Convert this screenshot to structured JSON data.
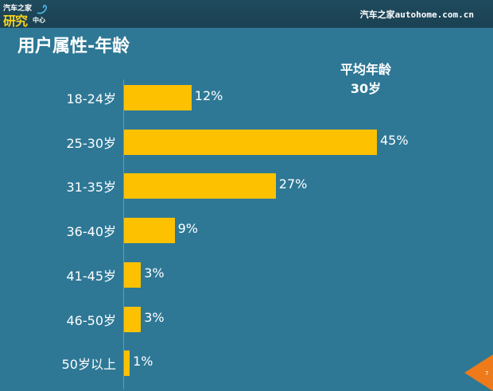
{
  "header": {
    "logo_line1": "汽车之家",
    "logo_line2": "研究",
    "logo_line3": "中心",
    "site_brand": "汽车之家autohome.com.cn"
  },
  "page": {
    "title": "用户属性-年龄",
    "avg_label": "平均年龄",
    "avg_value": "30岁",
    "page_number": "7"
  },
  "colors": {
    "background": "#2e7896",
    "header_bar": "#1f4b5e",
    "bar": "#fdc100",
    "page_marker": "#ee7a1a"
  },
  "chart_data": {
    "type": "bar",
    "orientation": "horizontal",
    "title": "用户属性-年龄",
    "annotation": "平均年龄 30岁",
    "categories": [
      "18-24岁",
      "25-30岁",
      "31-35岁",
      "36-40岁",
      "41-45岁",
      "46-50岁",
      "50岁以上"
    ],
    "values": [
      12,
      45,
      27,
      9,
      3,
      3,
      1
    ],
    "value_labels": [
      "12%",
      "45%",
      "27%",
      "9%",
      "3%",
      "3%",
      "1%"
    ],
    "unit": "%",
    "xlabel": "",
    "ylabel": "",
    "grid": false,
    "legend": null
  }
}
